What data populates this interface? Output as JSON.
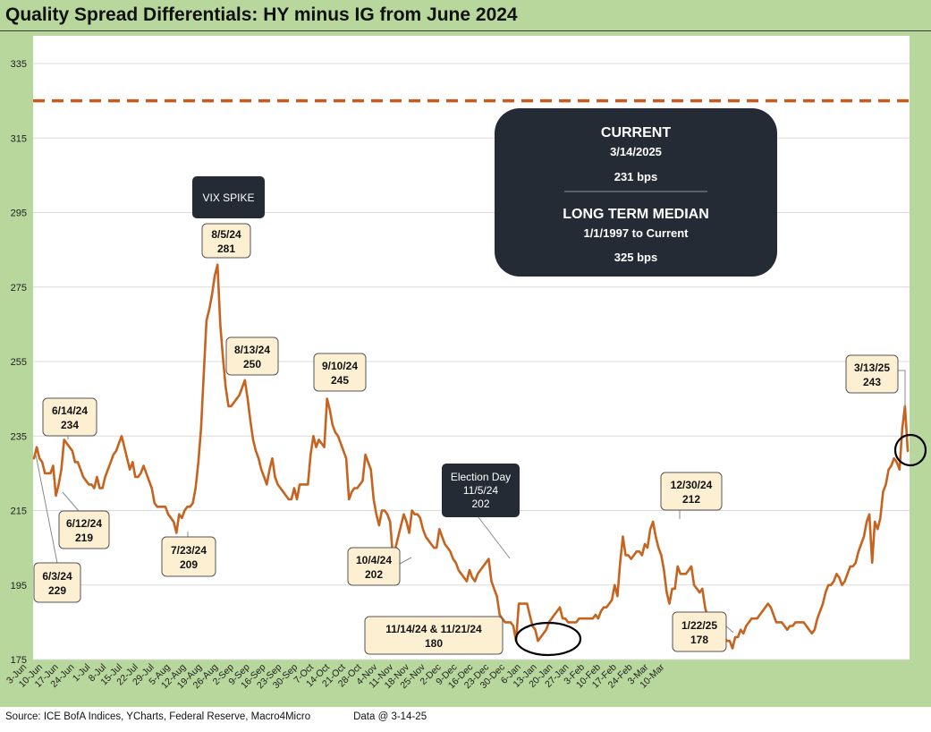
{
  "title": "Quality Spread Differentials: HY minus IG from June 2024",
  "footer": {
    "source": "Source: ICE BofA Indices, YCharts, Federal Reserve, Macro4Micro",
    "data_date": "Data @ 3-14-25"
  },
  "colors": {
    "frame": "#b7d79c",
    "line": "#c5631f",
    "median_line": "#c85a1e",
    "info_box": "#252b35",
    "callout_fill": "#fcefd2",
    "grid": "#dcdcdc"
  },
  "info_box": {
    "current_label": "CURRENT",
    "current_date": "3/14/2025",
    "current_value": "231 bps",
    "median_label": "LONG TERM MEDIAN",
    "median_range": "1/1/1997 to Current",
    "median_value": "325 bps"
  },
  "chart_data": {
    "type": "line",
    "title": "Quality Spread Differentials: HY minus IG from June 2024",
    "ylabel": "",
    "xlabel": "",
    "ylim": [
      175,
      335
    ],
    "yticks": [
      175,
      195,
      215,
      235,
      255,
      275,
      295,
      315,
      335
    ],
    "grid": true,
    "x_tick_labels": [
      "3-Jun",
      "10-Jun",
      "17-Jun",
      "24-Jun",
      "1-Jul",
      "8-Jul",
      "15-Jul",
      "22-Jul",
      "29-Jul",
      "5-Aug",
      "12-Aug",
      "19-Aug",
      "26-Aug",
      "2-Sep",
      "9-Sep",
      "16-Sep",
      "23-Sep",
      "30-Sep",
      "7-Oct",
      "14-Oct",
      "21-Oct",
      "28-Oct",
      "4-Nov",
      "11-Nov",
      "18-Nov",
      "25-Nov",
      "2-Dec",
      "9-Dec",
      "16-Dec",
      "23-Dec",
      "30-Dec",
      "6-Jan",
      "13-Jan",
      "20-Jan",
      "27-Jan",
      "3-Feb",
      "10-Feb",
      "17-Feb",
      "24-Feb",
      "3-Mar",
      "10-Mar"
    ],
    "median_value": 325,
    "series": [
      {
        "values": [
          229,
          232,
          229,
          228,
          225,
          225,
          225,
          227,
          219,
          222,
          226,
          234,
          233,
          232,
          231,
          228,
          228,
          226,
          224,
          223,
          222,
          222,
          221,
          224,
          221,
          221,
          224,
          226,
          228,
          230,
          231,
          233,
          235,
          232,
          229,
          226,
          228,
          224,
          224,
          225,
          227,
          225,
          223,
          221,
          217,
          216,
          216,
          216,
          216,
          214,
          213,
          212,
          209,
          214,
          213,
          215,
          216,
          216,
          217,
          221,
          228,
          237,
          252,
          266,
          269,
          273,
          278,
          281,
          265,
          256,
          248,
          243,
          243,
          244,
          245,
          246,
          248,
          250,
          245,
          239,
          234,
          231,
          229,
          226,
          224,
          222,
          226,
          229,
          224,
          222,
          221,
          220,
          219,
          218,
          218,
          221,
          218,
          222,
          222,
          222,
          222,
          230,
          235,
          232,
          234,
          233,
          232,
          245,
          242,
          238,
          236,
          235,
          233,
          231,
          229,
          218,
          220,
          221,
          221,
          222,
          223,
          230,
          228,
          226,
          218,
          214,
          211,
          215,
          215,
          214,
          212,
          203,
          205,
          208,
          211,
          214,
          212,
          209,
          215,
          214,
          214,
          213,
          210,
          208,
          207,
          206,
          205,
          205,
          210,
          208,
          206,
          205,
          204,
          202,
          201,
          199,
          198,
          197,
          196,
          199,
          197,
          196,
          198,
          199,
          200,
          201,
          202,
          196,
          194,
          192,
          187,
          186,
          185,
          185,
          185,
          184,
          180,
          190,
          190,
          190,
          190,
          187,
          184,
          183,
          180,
          181,
          182,
          183,
          185,
          186,
          187,
          188,
          189,
          186,
          186,
          185,
          185,
          185,
          185,
          186,
          186,
          186,
          186,
          186,
          186,
          187,
          186,
          188,
          189,
          189,
          190,
          191,
          195,
          192,
          201,
          208,
          203,
          203,
          202,
          203,
          204,
          204,
          203,
          206,
          205,
          210,
          212,
          208,
          205,
          203,
          199,
          193,
          190,
          194,
          194,
          200,
          198,
          198,
          198,
          199,
          200,
          195,
          194,
          193,
          194,
          189,
          186,
          184,
          184,
          184,
          185,
          182,
          181,
          180,
          180,
          178,
          181,
          181,
          183,
          182,
          184,
          185,
          186,
          186,
          186,
          187,
          188,
          189,
          190,
          189,
          187,
          185,
          185,
          185,
          184,
          183,
          184,
          184,
          185,
          185,
          185,
          185,
          184,
          183,
          182,
          183,
          186,
          188,
          190,
          193,
          195,
          195,
          196,
          198,
          197,
          195,
          196,
          198,
          200,
          200,
          201,
          204,
          206,
          208,
          212,
          214,
          201,
          212,
          210,
          213,
          220,
          222,
          226,
          227,
          229,
          228,
          226,
          237,
          243,
          231
        ]
      }
    ],
    "annotations": [
      {
        "date": "6/3/24",
        "value": "229"
      },
      {
        "date": "6/12/24",
        "value": "219"
      },
      {
        "date": "6/14/24",
        "value": "234"
      },
      {
        "date": "7/23/24",
        "value": "209"
      },
      {
        "date": "8/5/24",
        "value": "281"
      },
      {
        "date": "8/13/24",
        "value": "250"
      },
      {
        "date": "9/10/24",
        "value": "245"
      },
      {
        "date": "10/4/24",
        "value": "202"
      },
      {
        "date": "11/14/24 & 11/21/24",
        "value": "180"
      },
      {
        "date": "12/30/24",
        "value": "212"
      },
      {
        "date": "1/22/25",
        "value": "178"
      },
      {
        "date": "3/13/25",
        "value": "243"
      }
    ],
    "dark_callouts": [
      {
        "lines": [
          "VIX SPIKE"
        ]
      },
      {
        "lines": [
          "Election Day",
          "11/5/24",
          "202"
        ]
      }
    ]
  }
}
